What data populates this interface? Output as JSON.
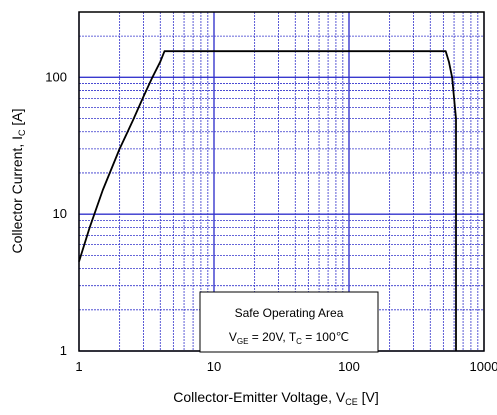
{
  "chart_data": {
    "type": "line",
    "x_scale": "log",
    "y_scale": "log",
    "xlim": [
      1,
      1000
    ],
    "ylim": [
      1,
      300
    ],
    "grid": true,
    "colors": {
      "grid": "#3333cc",
      "curve": "#000000",
      "axis": "#000000"
    },
    "x_ticks": [
      1,
      10,
      100,
      1000
    ],
    "x_tick_labels": [
      "1",
      "10",
      "100",
      "1000"
    ],
    "y_ticks": [
      1,
      10,
      100
    ],
    "y_tick_labels": [
      "1",
      "10",
      "100"
    ],
    "xlabel": {
      "main": "Collector-Emitter  Voltage, V",
      "sub": "CE",
      "unit": " [V]"
    },
    "ylabel": {
      "main": "Collector Current, I",
      "sub": "C",
      "unit": " [A]"
    },
    "series": [
      {
        "x": [
          1.0,
          1.2,
          1.5,
          2.0,
          2.5,
          3.0,
          3.5,
          4.0,
          4.3,
          50,
          200,
          520,
          550,
          580,
          620,
          620
        ],
        "y": [
          4.5,
          8.0,
          15,
          30,
          48,
          72,
          100,
          130,
          155,
          155,
          155,
          155,
          130,
          100,
          50,
          1
        ]
      }
    ],
    "annotation": {
      "line1": "Safe Operating Area",
      "line2": {
        "v": "V",
        "v_sub": "GE",
        "v_val": " = 20V, T",
        "t_sub": "C",
        "t_val": " = 100℃"
      }
    }
  }
}
